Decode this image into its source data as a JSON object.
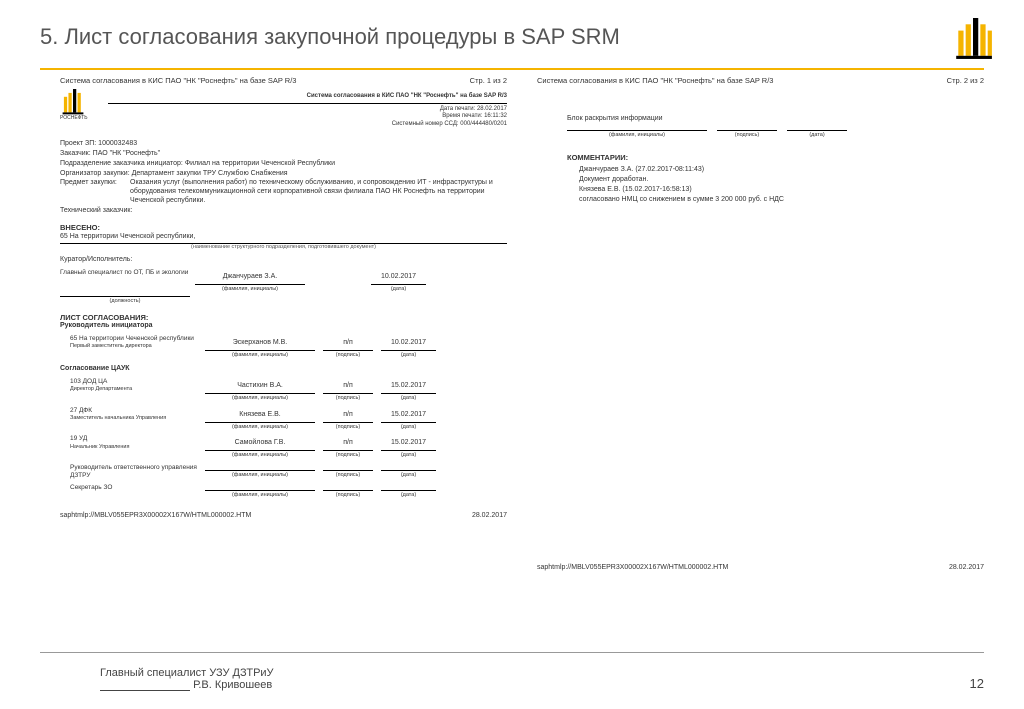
{
  "slide": {
    "title": "5. Лист согласования закупочной процедуры в SAP SRM",
    "author_role": "Главный специалист УЗУ ДЗТРиУ",
    "author_name": "Р.В. Кривошеев",
    "page_number": "12"
  },
  "colors": {
    "accent": "#f5b400",
    "black": "#000000",
    "text": "#333333"
  },
  "doc": {
    "system_line": "Система согласования в КИС ПАО \"НК \"Роснефть\" на базе SAP R/3",
    "page1": "Стр. 1 из 2",
    "page2": "Стр. 2 из 2",
    "header_title": "Система согласования в КИС ПАО \"НК \"Роснефть\" на базе SAP R/3",
    "date_print_lbl": "Дата печати:",
    "date_print": "28.02.2017",
    "time_print_lbl": "Время печати:",
    "time_print": "16:11:32",
    "sys_num_lbl": "Системный номер ССД:",
    "sys_num": "000/444480/0201",
    "brand": "РОСНЕФТЬ",
    "project_lbl": "Проект ЗП:",
    "project": "1000032483",
    "customer_lbl": "Заказчик:",
    "customer": "ПАО \"НК \"Роснефть\"",
    "division_lbl": "Подразделение заказчика инициатор:",
    "division": "Филиал на территории Чеченской Республики",
    "organizer_lbl": "Организатор закупки:",
    "organizer": "Департамент закупки ТРУ Службою Снабжения",
    "subject_lbl": "Предмет закупки:",
    "subject": "Оказания услуг (выполнения работ) по техническому обслуживанию, и сопровождению ИТ - инфраструктуры и оборудования телекоммуникационной сети корпоративной связи филиала ПАО НК Роснефть на территории Чеченской республики.",
    "tech_customer_lbl": "Технический заказчик:",
    "vneseno": "ВНЕСЕНО:",
    "vneseno_text": "65 На территории Чеченской республики,",
    "vneseno_sub": "(наименование структурного подразделения, подготовившего документ)",
    "curator_lbl": "Куратор/Исполнитель:",
    "curator_role": "Главный специалист по ОТ, ПБ и экологии",
    "curator_name": "Джанчураев З.А.",
    "curator_date": "10.02.2017",
    "sig_labels": {
      "position": "(должность)",
      "name": "(фамилия, инициалы)",
      "sign": "(подпись)",
      "date": "(дата)"
    },
    "list_head": "ЛИСТ СОГЛАСОВАНИЯ:",
    "initiator_head": "Руководитель инициатора",
    "tsauk_head": "Согласование ЦАУК",
    "approvals_initiator": [
      {
        "unit": "65 На территории Чеченской республики",
        "role": "Первый заместитель директора",
        "name": "Эскерханов М.В.",
        "sign": "п/п",
        "date": "10.02.2017"
      }
    ],
    "approvals_tsauk": [
      {
        "unit": "103 ДОД ЦА",
        "role": "Директор Департамента",
        "name": "Частихин В.А.",
        "sign": "п/п",
        "date": "15.02.2017"
      },
      {
        "unit": "27 ДФК",
        "role": "Заместитель начальника Управления",
        "name": "Князева Е.В.",
        "sign": "п/п",
        "date": "15.02.2017"
      },
      {
        "unit": "19 УД",
        "role": "Начальник Управления",
        "name": "Самойлова Г.В.",
        "sign": "п/п",
        "date": "15.02.2017"
      }
    ],
    "extra_rows": [
      {
        "unit": "Руководитель ответственного управления ДЗТРУ",
        "role": "",
        "name": "",
        "sign": "",
        "date": ""
      },
      {
        "unit": "Секретарь ЗО",
        "role": "",
        "name": "",
        "sign": "",
        "date": ""
      }
    ],
    "footer_path": "saphtmlp://MBLV055EPR3X00002X167W/HTML000002.HTM",
    "footer_date": "28.02.2017",
    "page2_block_title": "Блок раскрытия информации",
    "comments_head": "КОММЕНТАРИИ:",
    "comments": [
      "Джанчураев З.А. (27.02.2017-08:11:43)",
      "Документ доработан.",
      "Князева Е.В. (15.02.2017-16:58:13)",
      "согласовано НМЦ со снижением в сумме 3 200 000 руб. с НДС"
    ]
  }
}
